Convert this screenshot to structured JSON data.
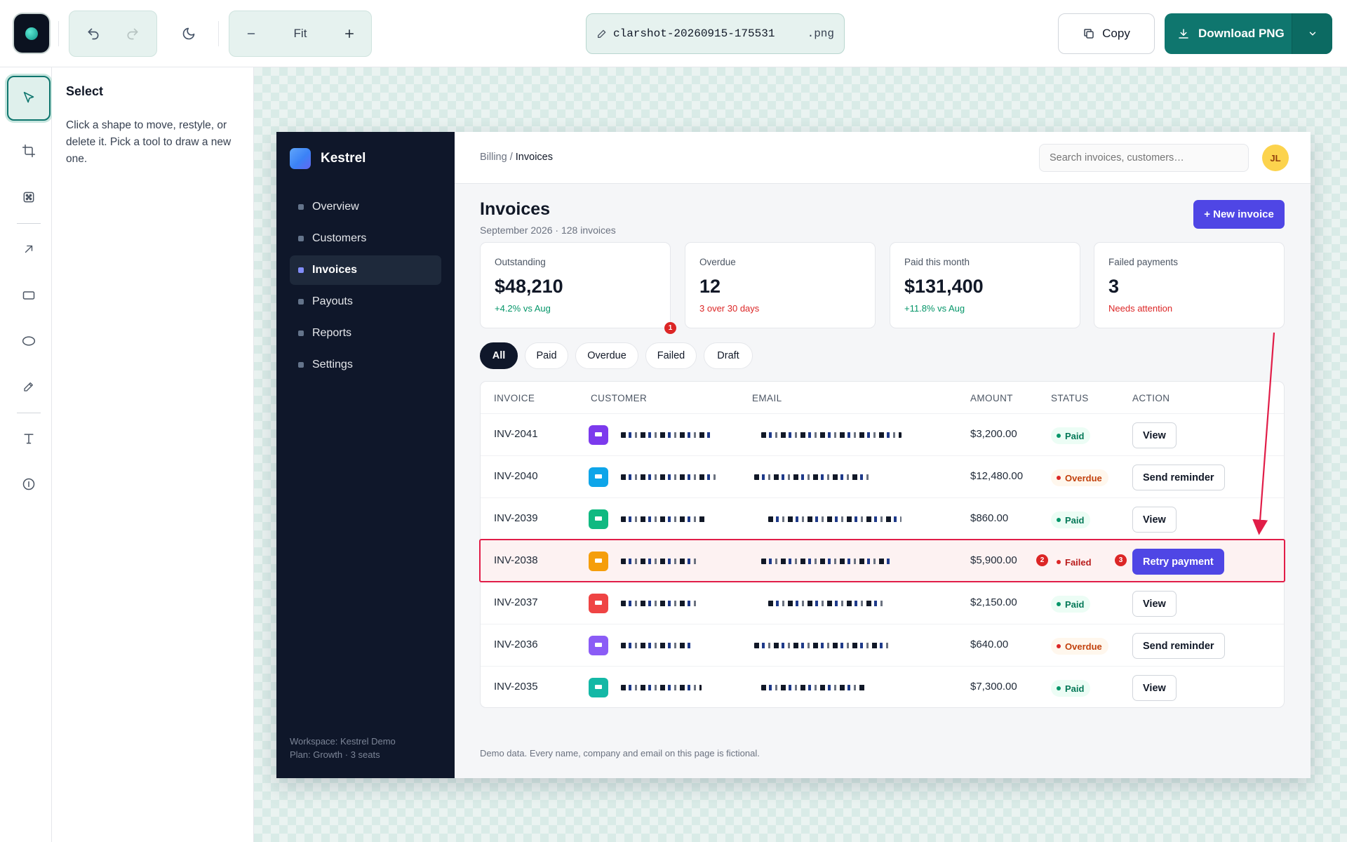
{
  "editor": {
    "zoom_label": "Fit",
    "filename": "clarshot-20260915-175531",
    "extension": ".png",
    "copy_label": "Copy",
    "download_label": "Download PNG",
    "inspector": {
      "title": "Select",
      "text": "Click a shape to move, restyle, or delete it. Pick a tool to draw a new one."
    },
    "accent_color": "#0f766e",
    "annotation_color": "#e11d48",
    "tools": [
      "select-icon",
      "crop-icon",
      "blur-icon",
      "arrow-icon",
      "rectangle-icon",
      "ellipse-icon",
      "pen-icon",
      "text-icon",
      "step-marker-icon"
    ]
  },
  "app": {
    "brand": "Kestrel",
    "nav": [
      {
        "label": "Overview"
      },
      {
        "label": "Customers"
      },
      {
        "label": "Invoices",
        "active": true
      },
      {
        "label": "Payouts"
      },
      {
        "label": "Reports"
      },
      {
        "label": "Settings"
      }
    ],
    "workspace": "Workspace: Kestrel Demo",
    "plan": "Plan: Growth · 3 seats",
    "breadcrumb": {
      "parent": "Billing",
      "separator": " / ",
      "current": "Invoices"
    },
    "search_placeholder": "Search invoices, customers…",
    "avatar_initials": "JL",
    "page_title": "Invoices",
    "page_subtitle": "September 2026 · 128 invoices",
    "new_button": "+ New invoice",
    "stats": [
      {
        "label": "Outstanding",
        "value": "$48,210",
        "note": "+4.2% vs Aug",
        "tone": "positive"
      },
      {
        "label": "Overdue",
        "value": "12",
        "note": "3 over 30 days",
        "tone": "negative"
      },
      {
        "label": "Paid this month",
        "value": "$131,400",
        "note": "+11.8% vs Aug",
        "tone": "positive"
      },
      {
        "label": "Failed payments",
        "value": "3",
        "note": "Needs attention",
        "tone": "negative"
      }
    ],
    "filters": [
      "All",
      "Paid",
      "Overdue",
      "Failed",
      "Draft"
    ],
    "active_filter": "All",
    "table": {
      "columns": [
        "INVOICE",
        "CUSTOMER",
        "EMAIL",
        "AMOUNT",
        "STATUS",
        "ACTION"
      ],
      "rows": [
        {
          "invoice": "INV-2041",
          "amount": "$3,200.00",
          "status": "Paid",
          "action": "View",
          "icon_color": "#7c3aed"
        },
        {
          "invoice": "INV-2040",
          "amount": "$12,480.00",
          "status": "Overdue",
          "action": "Send reminder",
          "icon_color": "#0ea5e9"
        },
        {
          "invoice": "INV-2039",
          "amount": "$860.00",
          "status": "Paid",
          "action": "View",
          "icon_color": "#10b981"
        },
        {
          "invoice": "INV-2038",
          "amount": "$5,900.00",
          "status": "Failed",
          "action": "Retry payment",
          "icon_color": "#f59e0b",
          "highlighted": true
        },
        {
          "invoice": "INV-2037",
          "amount": "$2,150.00",
          "status": "Paid",
          "action": "View",
          "icon_color": "#ef4444"
        },
        {
          "invoice": "INV-2036",
          "amount": "$640.00",
          "status": "Overdue",
          "action": "Send reminder",
          "icon_color": "#8b5cf6"
        },
        {
          "invoice": "INV-2035",
          "amount": "$7,300.00",
          "status": "Paid",
          "action": "View",
          "icon_color": "#14b8a6"
        }
      ]
    },
    "footer_note": "Demo data. Every name, company and email on this page is fictional."
  },
  "annotations": {
    "step_markers": [
      "1",
      "2",
      "3"
    ]
  }
}
